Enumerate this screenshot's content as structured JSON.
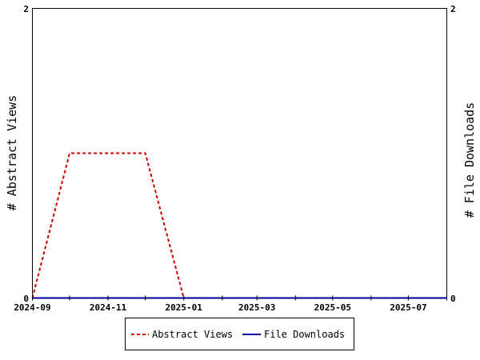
{
  "chart_data": {
    "type": "line",
    "title": "",
    "left_axis": {
      "label": "# Abstract Views",
      "ylim": [
        0,
        2
      ],
      "ticks": [
        "0",
        "2"
      ]
    },
    "right_axis": {
      "label": "# File Downloads",
      "ylim": [
        0,
        2
      ],
      "ticks": [
        "0",
        "2"
      ]
    },
    "x_axis": {
      "type": "date",
      "range": [
        "2024-09",
        "2025-08"
      ],
      "tick_months": [
        "2024-09",
        "2024-10",
        "2024-11",
        "2024-12",
        "2025-01",
        "2025-02",
        "2025-03",
        "2025-04",
        "2025-05",
        "2025-06",
        "2025-07",
        "2025-08"
      ],
      "labels": [
        "2024-09",
        "2024-11",
        "2025-01",
        "2025-03",
        "2025-05",
        "2025-07"
      ]
    },
    "series": [
      {
        "name": "Abstract Views",
        "axis": "left",
        "color": "#cc0000",
        "style": "dashed",
        "x": [
          "2024-09",
          "2024-10",
          "2024-11",
          "2024-12",
          "2025-01",
          "2025-02",
          "2025-03",
          "2025-04",
          "2025-05",
          "2025-06",
          "2025-07",
          "2025-08"
        ],
        "values": [
          0,
          1,
          1,
          1,
          0,
          0,
          0,
          0,
          0,
          0,
          0,
          0
        ]
      },
      {
        "name": "File Downloads",
        "axis": "right",
        "color": "#000099",
        "style": "solid",
        "x": [
          "2024-09",
          "2024-10",
          "2024-11",
          "2024-12",
          "2025-01",
          "2025-02",
          "2025-03",
          "2025-04",
          "2025-05",
          "2025-06",
          "2025-07",
          "2025-08"
        ],
        "values": [
          0,
          0,
          0,
          0,
          0,
          0,
          0,
          0,
          0,
          0,
          0,
          0
        ]
      }
    ],
    "legend": {
      "position": "bottom-center"
    },
    "grid": false
  }
}
